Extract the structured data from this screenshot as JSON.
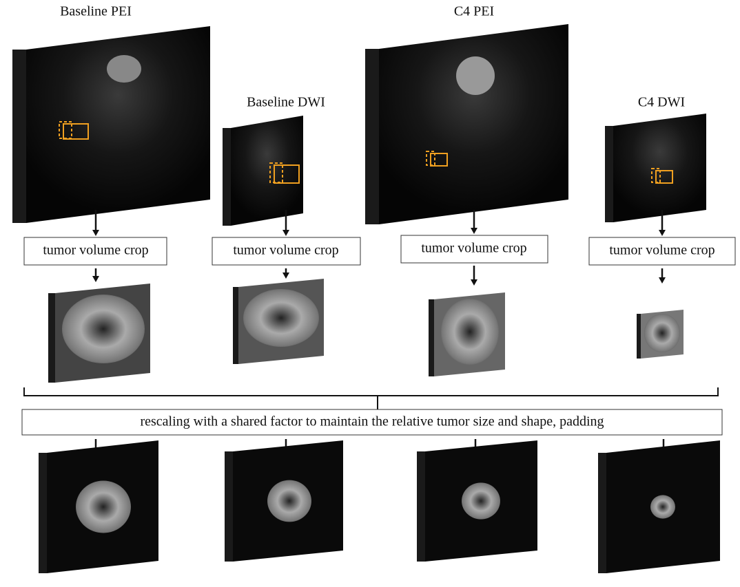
{
  "columns": [
    {
      "title": "Baseline PEI",
      "step": "tumor volume crop"
    },
    {
      "title": "Baseline DWI",
      "step": "tumor volume crop"
    },
    {
      "title": "C4 PEI",
      "step": "tumor volume crop"
    },
    {
      "title": "C4 DWI",
      "step": "tumor volume crop"
    }
  ],
  "shared_step": "rescaling with a shared factor to maintain the relative tumor size and shape, padding"
}
